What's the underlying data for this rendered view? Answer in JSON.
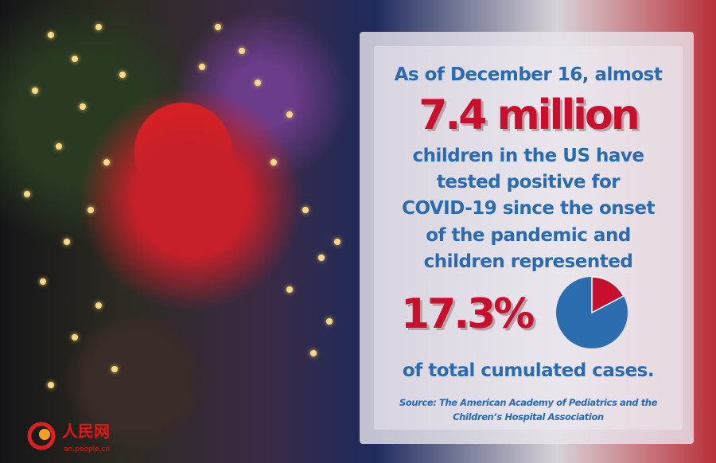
{
  "headline": {
    "line1": "As of December 16, almost",
    "figure": "7.4 million"
  },
  "body_lines": [
    "children in the US have",
    "tested positive for",
    "COVID-19 since the onset",
    "of the pandemic and",
    "children represented"
  ],
  "percentage": "17.3%",
  "closing": "of total cumulated cases.",
  "source": {
    "line1": "Source: The American Academy of Pediatrics and the",
    "line2": "Children’s Hospital Association"
  },
  "pie": {
    "share_percent": 17.3,
    "colors": {
      "share": "#c8102e",
      "rest": "#2c6db0"
    }
  },
  "logo": {
    "cn": "人民网",
    "url": "en.people.cn"
  },
  "colors": {
    "blue": "#2a6ab0",
    "red": "#c8102e"
  }
}
